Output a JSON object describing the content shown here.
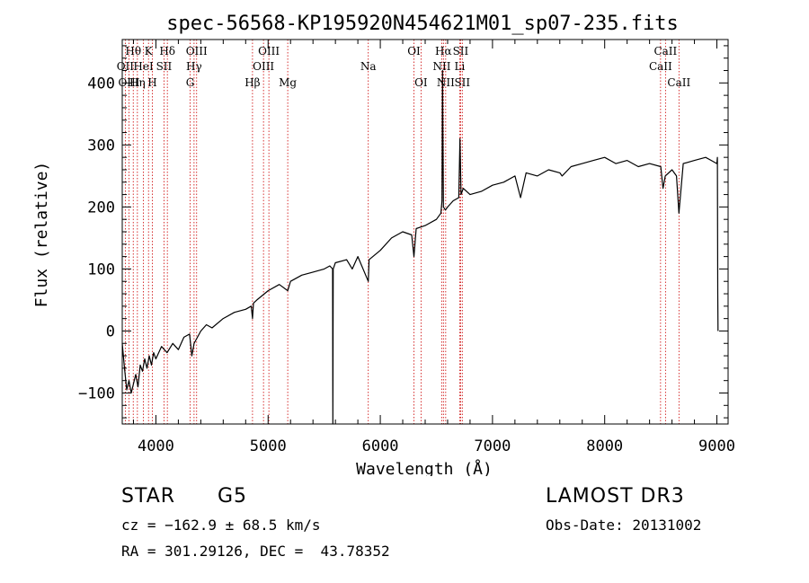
{
  "chart_data": {
    "type": "line",
    "title": "spec-56568-KP195920N454621M01_sp07-235.fits",
    "xlabel": "Wavelength (Å)",
    "ylabel": "Flux (relative)",
    "xlim": [
      3700,
      9100
    ],
    "ylim": [
      -150,
      470
    ],
    "x_ticks": [
      4000,
      5000,
      6000,
      7000,
      8000,
      9000
    ],
    "y_ticks": [
      -100,
      0,
      100,
      200,
      300,
      400
    ],
    "grid": false,
    "series": [
      {
        "name": "spectrum",
        "points": [
          [
            3700,
            -20
          ],
          [
            3720,
            -60
          ],
          [
            3740,
            -95
          ],
          [
            3760,
            -80
          ],
          [
            3780,
            -100
          ],
          [
            3800,
            -85
          ],
          [
            3820,
            -70
          ],
          [
            3840,
            -90
          ],
          [
            3860,
            -55
          ],
          [
            3880,
            -65
          ],
          [
            3900,
            -45
          ],
          [
            3920,
            -60
          ],
          [
            3940,
            -40
          ],
          [
            3960,
            -55
          ],
          [
            3980,
            -35
          ],
          [
            4000,
            -45
          ],
          [
            4050,
            -25
          ],
          [
            4100,
            -35
          ],
          [
            4150,
            -20
          ],
          [
            4200,
            -30
          ],
          [
            4250,
            -10
          ],
          [
            4300,
            -5
          ],
          [
            4320,
            -40
          ],
          [
            4340,
            -20
          ],
          [
            4400,
            0
          ],
          [
            4450,
            10
          ],
          [
            4500,
            5
          ],
          [
            4600,
            20
          ],
          [
            4700,
            30
          ],
          [
            4800,
            35
          ],
          [
            4850,
            40
          ],
          [
            4861,
            20
          ],
          [
            4870,
            45
          ],
          [
            4900,
            50
          ],
          [
            5000,
            65
          ],
          [
            5100,
            75
          ],
          [
            5175,
            65
          ],
          [
            5200,
            80
          ],
          [
            5300,
            90
          ],
          [
            5400,
            95
          ],
          [
            5500,
            100
          ],
          [
            5550,
            105
          ],
          [
            5575,
            100
          ],
          [
            5577,
            -150
          ],
          [
            5580,
            100
          ],
          [
            5600,
            110
          ],
          [
            5700,
            115
          ],
          [
            5750,
            100
          ],
          [
            5800,
            120
          ],
          [
            5893,
            80
          ],
          [
            5900,
            115
          ],
          [
            6000,
            130
          ],
          [
            6100,
            150
          ],
          [
            6200,
            160
          ],
          [
            6280,
            155
          ],
          [
            6300,
            120
          ],
          [
            6320,
            165
          ],
          [
            6400,
            170
          ],
          [
            6500,
            180
          ],
          [
            6540,
            190
          ],
          [
            6550,
            210
          ],
          [
            6555,
            420
          ],
          [
            6563,
            200
          ],
          [
            6580,
            195
          ],
          [
            6600,
            200
          ],
          [
            6650,
            210
          ],
          [
            6700,
            215
          ],
          [
            6710,
            310
          ],
          [
            6720,
            220
          ],
          [
            6740,
            230
          ],
          [
            6800,
            220
          ],
          [
            6900,
            225
          ],
          [
            7000,
            235
          ],
          [
            7100,
            240
          ],
          [
            7200,
            250
          ],
          [
            7250,
            215
          ],
          [
            7300,
            255
          ],
          [
            7400,
            250
          ],
          [
            7500,
            260
          ],
          [
            7600,
            255
          ],
          [
            7620,
            250
          ],
          [
            7700,
            265
          ],
          [
            7800,
            270
          ],
          [
            7900,
            275
          ],
          [
            8000,
            280
          ],
          [
            8100,
            270
          ],
          [
            8200,
            275
          ],
          [
            8300,
            265
          ],
          [
            8400,
            270
          ],
          [
            8500,
            265
          ],
          [
            8520,
            230
          ],
          [
            8540,
            250
          ],
          [
            8600,
            260
          ],
          [
            8640,
            250
          ],
          [
            8662,
            190
          ],
          [
            8700,
            270
          ],
          [
            8800,
            275
          ],
          [
            8900,
            280
          ],
          [
            8950,
            275
          ],
          [
            9000,
            270
          ],
          [
            9005,
            280
          ],
          [
            9008,
            60
          ],
          [
            9010,
            0
          ]
        ]
      }
    ],
    "lines": [
      {
        "name": "Hθ",
        "x": 3798,
        "row": 1
      },
      {
        "name": "OII",
        "x": 3727,
        "row": 2
      },
      {
        "name": "OIII",
        "x": 3760,
        "row": 3
      },
      {
        "name": "K",
        "x": 3934,
        "row": 1
      },
      {
        "name": "HeI",
        "x": 3889,
        "row": 2
      },
      {
        "name": "Hη",
        "x": 3835,
        "row": 3
      },
      {
        "name": "Hδ",
        "x": 4102,
        "row": 1
      },
      {
        "name": "SII",
        "x": 4072,
        "row": 2
      },
      {
        "name": "H",
        "x": 3968,
        "row": 3
      },
      {
        "name": "OIII",
        "x": 4363,
        "row": 1
      },
      {
        "name": "Hγ",
        "x": 4340,
        "row": 2
      },
      {
        "name": "G",
        "x": 4305,
        "row": 3
      },
      {
        "name": "OIII",
        "x": 5007,
        "row": 1
      },
      {
        "name": "OIII",
        "x": 4959,
        "row": 2
      },
      {
        "name": "Hβ",
        "x": 4861,
        "row": 3
      },
      {
        "name": "Mg",
        "x": 5175,
        "row": 3
      },
      {
        "name": "Na",
        "x": 5893,
        "row": 2
      },
      {
        "name": "OI",
        "x": 6300,
        "row": 1
      },
      {
        "name": "OI",
        "x": 6363,
        "row": 3
      },
      {
        "name": "Hα",
        "x": 6563,
        "row": 1
      },
      {
        "name": "NII",
        "x": 6548,
        "row": 2
      },
      {
        "name": "NII",
        "x": 6583,
        "row": 3
      },
      {
        "name": "SII",
        "x": 6716,
        "row": 1
      },
      {
        "name": "Li",
        "x": 6708,
        "row": 2
      },
      {
        "name": "SII",
        "x": 6731,
        "row": 3
      },
      {
        "name": "CaII",
        "x": 8542,
        "row": 1
      },
      {
        "name": "CaII",
        "x": 8498,
        "row": 2
      },
      {
        "name": "CaII",
        "x": 8662,
        "row": 3
      }
    ]
  },
  "info": {
    "class": "STAR",
    "subclass": "G5",
    "survey": "LAMOST DR3",
    "cz": "cz = −162.9 ± 68.5 km/s",
    "obs_date": "Obs-Date: 20131002",
    "radec": "RA = 301.29126, DEC =  43.78352"
  },
  "colors": {
    "spectrum": "#000000",
    "line_markers": "#cc0000",
    "axes": "#000000"
  }
}
